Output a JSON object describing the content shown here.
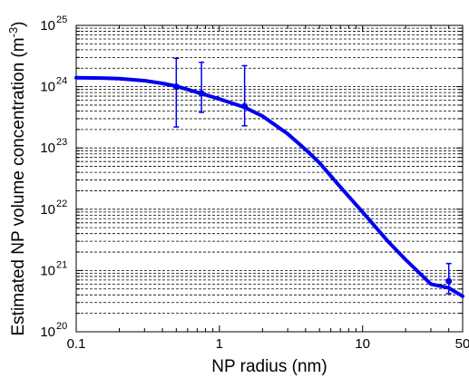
{
  "chart_data": {
    "type": "line",
    "xlabel": "NP radius (nm)",
    "ylabel": "Estimated NP volume concentration (m",
    "ylabel_sup": "-3",
    "ylabel_close": ")",
    "xscale": "log",
    "yscale": "log",
    "xlim": [
      0.1,
      50
    ],
    "ylim": [
      1e+20,
      1e+25
    ],
    "grid": "y-major-and-minor-dashed",
    "line_color": "#0000ee",
    "x_ticks": [
      {
        "value": 0.1,
        "label": "0.1"
      },
      {
        "value": 1,
        "label": "1"
      },
      {
        "value": 10,
        "label": "10"
      },
      {
        "value": 50,
        "label": "50"
      }
    ],
    "y_ticks": [
      {
        "value": 1e+20,
        "base": "10",
        "exp": "20"
      },
      {
        "value": 1e+21,
        "base": "10",
        "exp": "21"
      },
      {
        "value": 1e+22,
        "base": "10",
        "exp": "22"
      },
      {
        "value": 1e+23,
        "base": "10",
        "exp": "23"
      },
      {
        "value": 1e+24,
        "base": "10",
        "exp": "24"
      },
      {
        "value": 1e+25,
        "base": "10",
        "exp": "25"
      }
    ],
    "series": [
      {
        "x": [
          0.1,
          0.15,
          0.2,
          0.3,
          0.4,
          0.5,
          0.6,
          0.75,
          1.0,
          1.5,
          2,
          3,
          4,
          5,
          7,
          10,
          15,
          20,
          30,
          40,
          50
        ],
        "y": [
          1.4e+24,
          1.38e+24,
          1.35e+24,
          1.25e+24,
          1.13e+24,
          1.02e+24,
          9e+23,
          7.7e+23,
          6.3e+23,
          4.6e+23,
          3.3e+23,
          1.7e+23,
          9.4e+22,
          5.7e+22,
          2.3e+22,
          9e+21,
          3e+21,
          1.5e+21,
          6e+20,
          5.2e+20,
          3.8e+20
        ]
      }
    ],
    "error_bars": [
      {
        "x": 0.5,
        "y": 1e+24,
        "low": 2.2e+23,
        "high": 2.9e+24
      },
      {
        "x": 0.75,
        "y": 7.8e+23,
        "low": 3.8e+23,
        "high": 2.5e+24
      },
      {
        "x": 1.5,
        "y": 4.8e+23,
        "low": 2.3e+23,
        "high": 2.2e+24
      },
      {
        "x": 40,
        "y": 6.7e+20,
        "low": 4.2e+20,
        "high": 1.3e+21
      }
    ]
  }
}
